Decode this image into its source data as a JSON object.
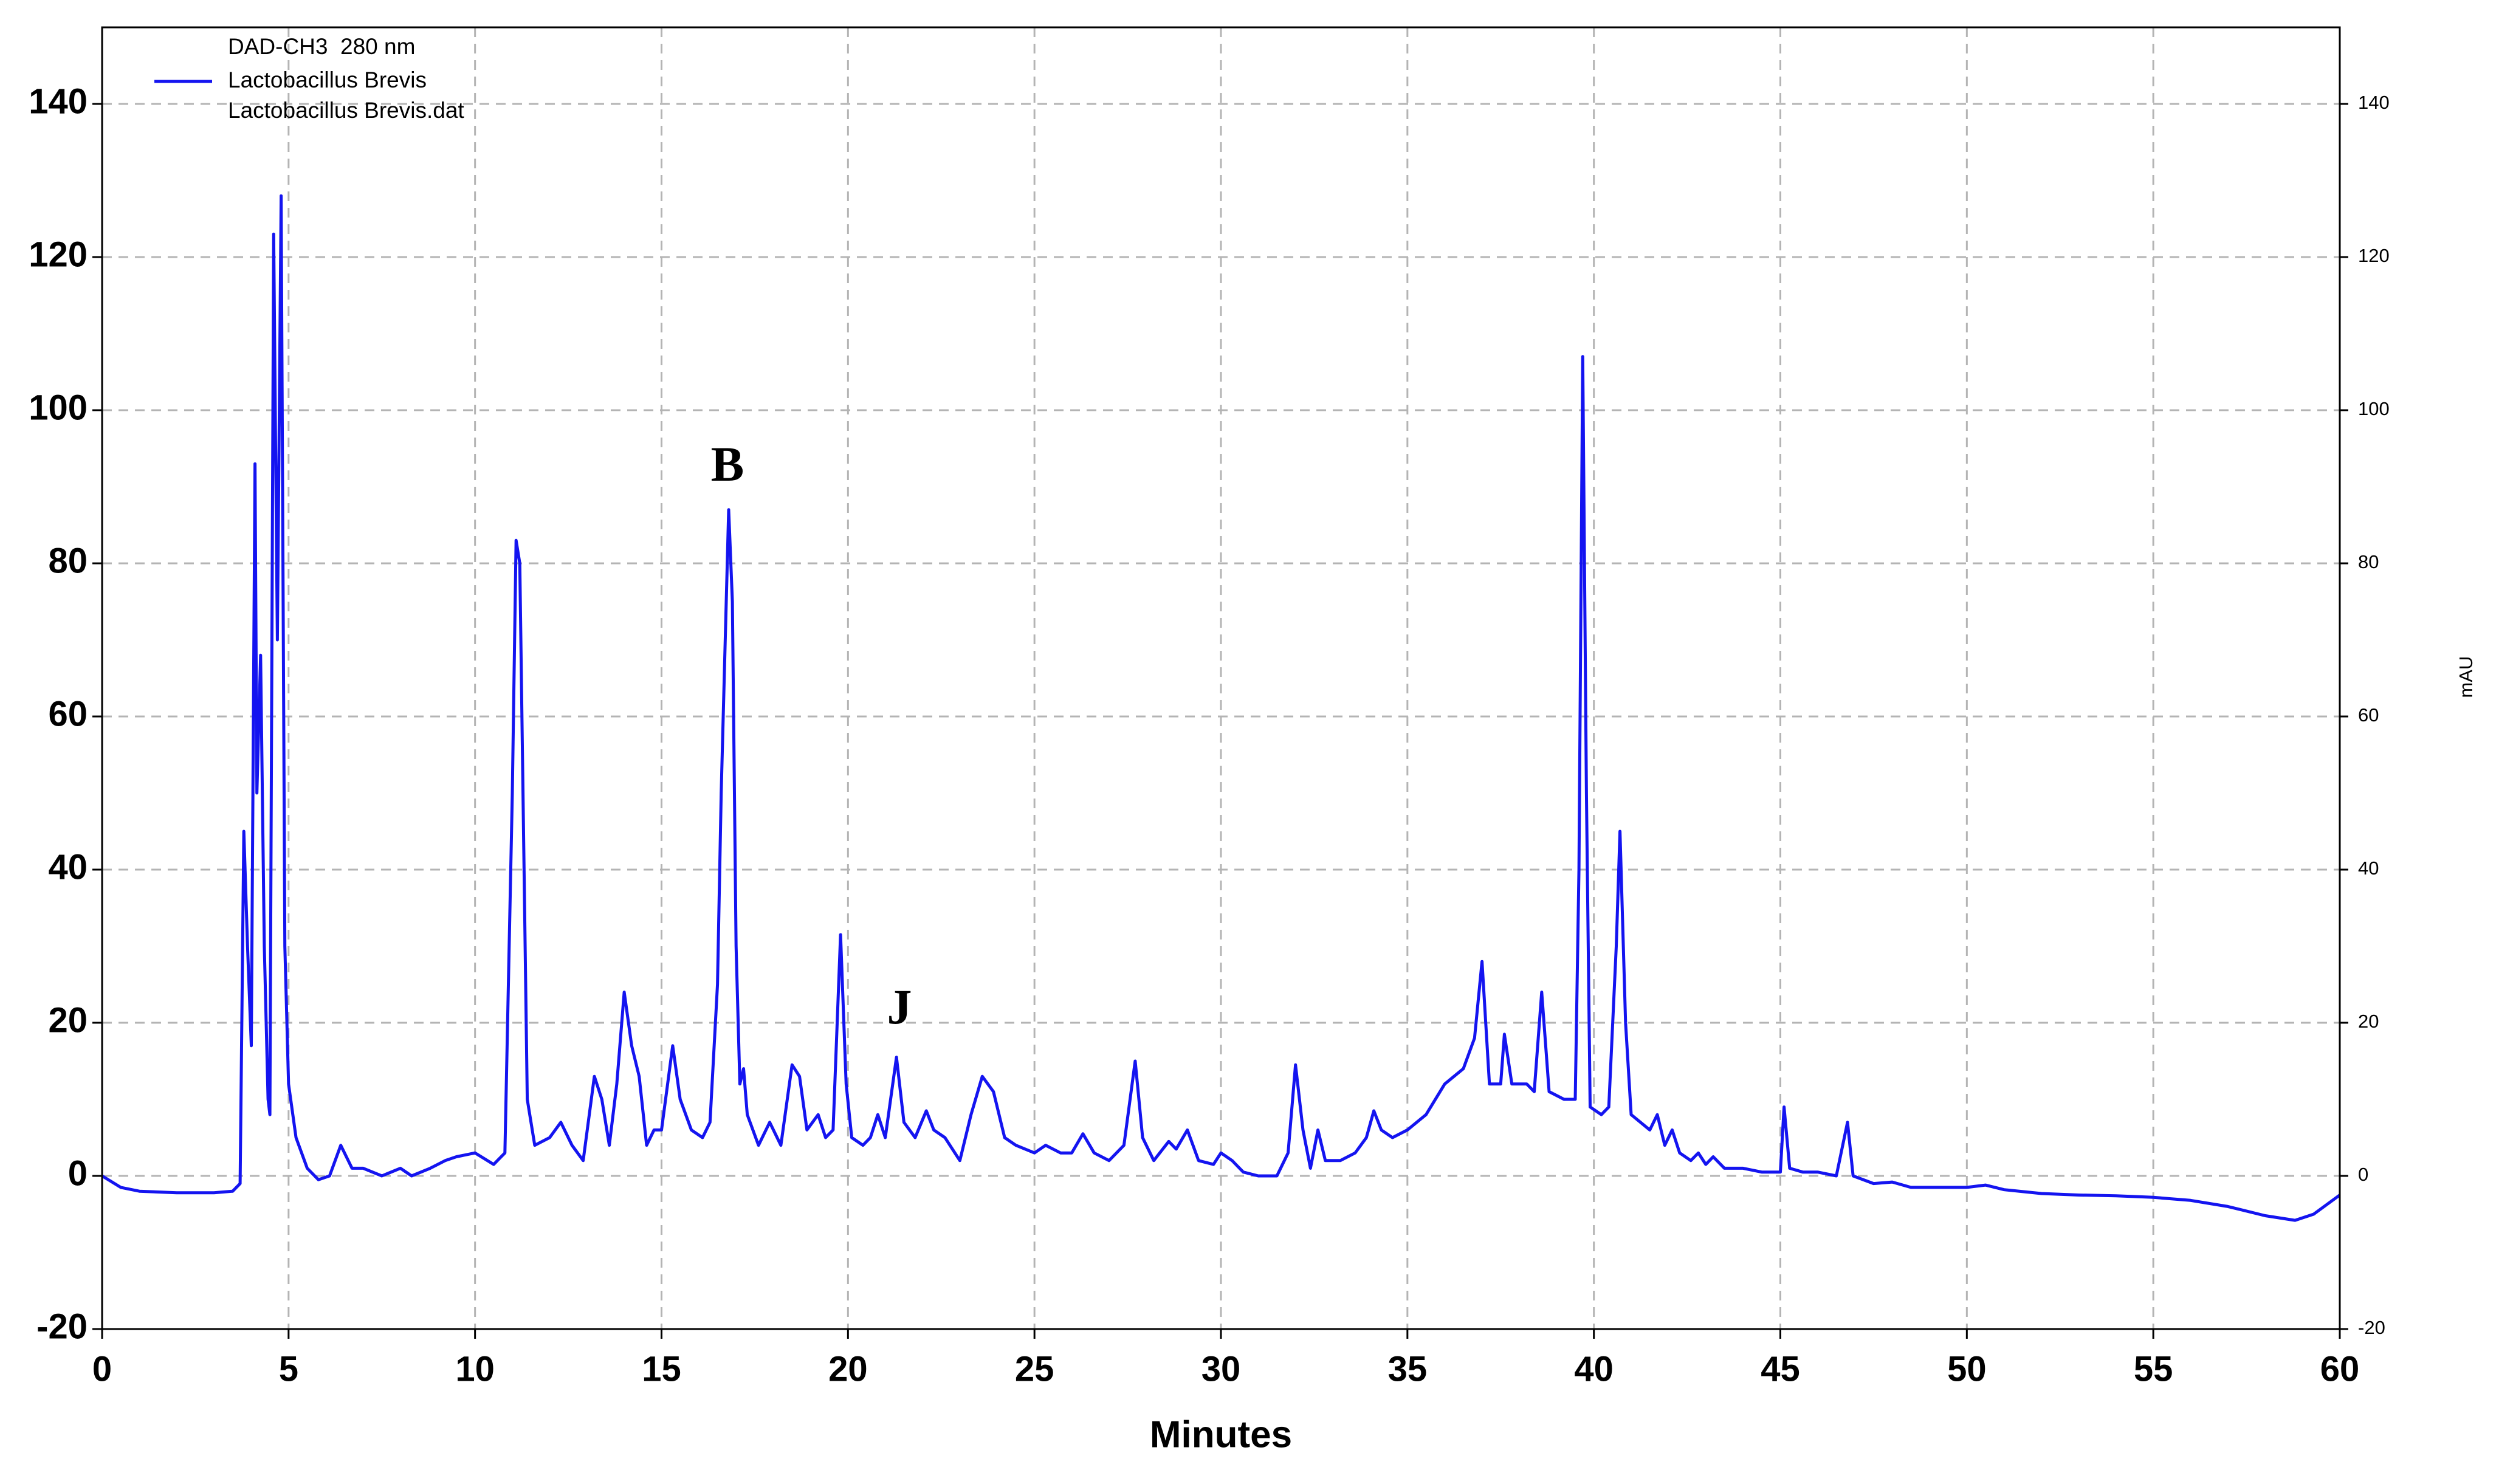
{
  "chart_data": {
    "type": "line",
    "x_label": "Minutes",
    "y2_label": "mAU",
    "legend_title": "DAD-CH3  280 nm",
    "legend_note": "Lactobacillus Brevis.dat",
    "legend": "upper left",
    "grid": true,
    "annotations": [
      "B",
      "J"
    ],
    "xlim": [
      0,
      60
    ],
    "xticks": [
      0,
      5,
      10,
      15,
      20,
      25,
      30,
      35,
      40,
      45,
      50,
      55,
      60
    ],
    "ylim": [
      -20,
      150
    ],
    "yticks": [
      -20,
      0,
      20,
      40,
      60,
      80,
      100,
      120,
      140
    ],
    "y2lim": [
      -20,
      150
    ],
    "y2ticks": [
      -20,
      0,
      20,
      40,
      60,
      80,
      100,
      120,
      140
    ],
    "x": [
      0,
      0.5,
      1,
      2,
      3,
      3.5,
      3.7,
      3.8,
      3.9,
      4.0,
      4.1,
      4.15,
      4.25,
      4.35,
      4.45,
      4.5,
      4.6,
      4.7,
      4.8,
      4.9,
      5.0,
      5.2,
      5.5,
      5.8,
      6.1,
      6.4,
      6.7,
      7.0,
      7.5,
      8,
      8.3,
      8.8,
      9.2,
      9.5,
      10,
      10.5,
      10.8,
      11.0,
      11.1,
      11.2,
      11.4,
      11.6,
      12,
      12.3,
      12.6,
      12.9,
      13.2,
      13.4,
      13.6,
      13.8,
      14.0,
      14.2,
      14.4,
      14.6,
      14.8,
      15.0,
      15.3,
      15.5,
      15.8,
      16.1,
      16.3,
      16.5,
      16.6,
      16.8,
      16.9,
      17.0,
      17.1,
      17.2,
      17.3,
      17.6,
      17.9,
      18.2,
      18.5,
      18.7,
      18.9,
      19.2,
      19.4,
      19.6,
      19.8,
      19.95,
      20.1,
      20.4,
      20.6,
      20.8,
      21.0,
      21.3,
      21.5,
      21.8,
      22.1,
      22.3,
      22.6,
      23.0,
      23.3,
      23.6,
      23.9,
      24.2,
      24.5,
      25.0,
      25.3,
      25.7,
      26.0,
      26.3,
      26.6,
      27.0,
      27.4,
      27.7,
      27.9,
      28.2,
      28.6,
      28.8,
      29.1,
      29.4,
      29.8,
      30.0,
      30.3,
      30.6,
      31.0,
      31.5,
      31.8,
      32.0,
      32.2,
      32.4,
      32.6,
      32.8,
      33.2,
      33.6,
      33.9,
      34.1,
      34.3,
      34.6,
      35.0,
      35.5,
      36.0,
      36.5,
      36.8,
      37.0,
      37.2,
      37.5,
      37.6,
      37.8,
      38.2,
      38.4,
      38.6,
      38.8,
      39.2,
      39.5,
      39.6,
      39.7,
      39.8,
      39.9,
      40.2,
      40.4,
      40.6,
      40.7,
      40.85,
      41.0,
      41.5,
      41.7,
      41.9,
      42.1,
      42.3,
      42.6,
      42.8,
      43.0,
      43.2,
      43.5,
      44,
      44.5,
      45,
      45.1,
      45.25,
      45.6,
      46,
      46.5,
      46.8,
      46.95,
      47.5,
      48,
      48.5,
      49,
      50,
      50.5,
      51,
      52,
      53,
      54,
      55,
      56,
      57,
      58,
      58.8,
      59.3,
      60
    ],
    "series": [
      {
        "name": "Lactobacillus Brevis",
        "color": "#1414f0",
        "values": [
          0,
          -1.5,
          -2,
          -2.2,
          -2.2,
          -2,
          -1,
          45,
          30,
          17,
          93,
          50,
          68,
          30,
          10,
          8,
          123,
          70,
          128,
          30,
          12,
          5,
          1,
          -0.5,
          0,
          4,
          1,
          1,
          0,
          1,
          0,
          1,
          2,
          2.5,
          3,
          1.5,
          3,
          50,
          83,
          80,
          10,
          4,
          5,
          7,
          4,
          2,
          13,
          10,
          4,
          12,
          24,
          17,
          13,
          4,
          6,
          6,
          17,
          10,
          6,
          5,
          7,
          25,
          50,
          87,
          75,
          30,
          12,
          14,
          8,
          4,
          7,
          4,
          14.5,
          13,
          6,
          8,
          5,
          6,
          31.5,
          12,
          5,
          4,
          5,
          8,
          5,
          15.5,
          7,
          5,
          8.5,
          6,
          5,
          2,
          8,
          13,
          11,
          5,
          4,
          3,
          4,
          3,
          3,
          5.5,
          3,
          2,
          4,
          15,
          5,
          2,
          4.5,
          3.5,
          6,
          2,
          1.5,
          3,
          2,
          0.5,
          0,
          0,
          3,
          14.5,
          6,
          1,
          6,
          2,
          2,
          3,
          5,
          8.5,
          6,
          5,
          6,
          8,
          12,
          14,
          18,
          28,
          12,
          12,
          18.5,
          12,
          12,
          11,
          24,
          11,
          10,
          10,
          40,
          107,
          50,
          9,
          8,
          9,
          30,
          45,
          20,
          8,
          6,
          8,
          4,
          6,
          3,
          2,
          3,
          1.5,
          2.5,
          1,
          1,
          0.5,
          0.5,
          9,
          1,
          0.5,
          0.5,
          0,
          7,
          0,
          -1,
          -0.8,
          -1.5,
          -1.5,
          -1.5,
          -1.2,
          -1.8,
          -2.3,
          -2.5,
          -2.6,
          -2.8,
          -3.2,
          -4,
          -5.2,
          -5.8,
          -5,
          -2.5
        ]
      }
    ]
  }
}
